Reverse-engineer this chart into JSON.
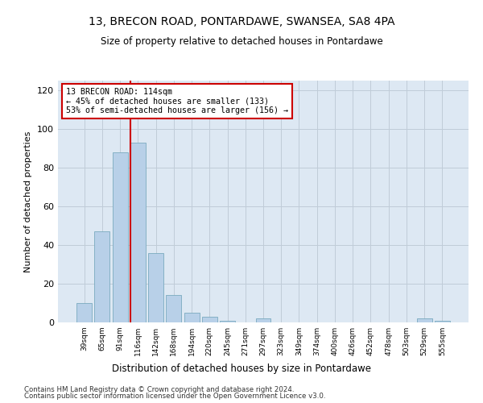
{
  "title_line1": "13, BRECON ROAD, PONTARDAWE, SWANSEA, SA8 4PA",
  "title_line2": "Size of property relative to detached houses in Pontardawe",
  "xlabel": "Distribution of detached houses by size in Pontardawe",
  "ylabel": "Number of detached properties",
  "categories": [
    "39sqm",
    "65sqm",
    "91sqm",
    "116sqm",
    "142sqm",
    "168sqm",
    "194sqm",
    "220sqm",
    "245sqm",
    "271sqm",
    "297sqm",
    "323sqm",
    "349sqm",
    "374sqm",
    "400sqm",
    "426sqm",
    "452sqm",
    "478sqm",
    "503sqm",
    "529sqm",
    "555sqm"
  ],
  "values": [
    10,
    47,
    88,
    93,
    36,
    14,
    5,
    3,
    1,
    0,
    2,
    0,
    0,
    0,
    0,
    0,
    0,
    0,
    0,
    2,
    1
  ],
  "bar_color": "#b8d0e8",
  "bar_edge_color": "#7aaabf",
  "highlight_color": "#cc0000",
  "highlight_index": 3,
  "annotation_text": "13 BRECON ROAD: 114sqm\n← 45% of detached houses are smaller (133)\n53% of semi-detached houses are larger (156) →",
  "annotation_box_color": "#ffffff",
  "annotation_box_edge": "#cc0000",
  "ylim": [
    0,
    125
  ],
  "yticks": [
    0,
    20,
    40,
    60,
    80,
    100,
    120
  ],
  "background_color": "#ffffff",
  "plot_bg_color": "#dde8f3",
  "grid_color": "#c0ccd8",
  "footer_line1": "Contains HM Land Registry data © Crown copyright and database right 2024.",
  "footer_line2": "Contains public sector information licensed under the Open Government Licence v3.0."
}
